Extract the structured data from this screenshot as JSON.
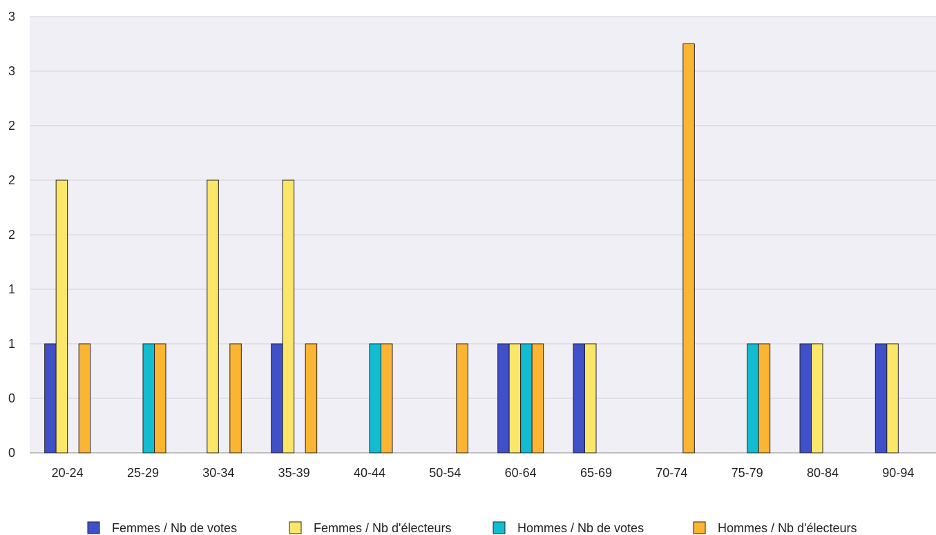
{
  "chart_data": {
    "type": "bar",
    "title": "",
    "xlabel": "",
    "ylabel": "",
    "categories": [
      "20-24",
      "25-29",
      "30-34",
      "35-39",
      "40-44",
      "50-54",
      "60-64",
      "65-69",
      "70-74",
      "75-79",
      "80-84",
      "90-94"
    ],
    "ylim": [
      0,
      4
    ],
    "y_tick_values": [
      0,
      0.5,
      1,
      1.5,
      2,
      2.5,
      3,
      3.5,
      4
    ],
    "y_tick_labels": [
      "0",
      "0",
      "1",
      "1",
      "2",
      "2",
      "2",
      "3",
      "3"
    ],
    "grid": true,
    "legend_position": "bottom",
    "series": [
      {
        "name": "Femmes / Nb de votes",
        "color": "#4050c8",
        "values": [
          1,
          0,
          0,
          1,
          0,
          0,
          1,
          1,
          0,
          0,
          1,
          1
        ]
      },
      {
        "name": "Femmes / Nb d'électeurs",
        "color": "#fce66a",
        "values": [
          2.5,
          0,
          2.5,
          2.5,
          0,
          0,
          1,
          1,
          0,
          0,
          1,
          1
        ]
      },
      {
        "name": "Hommes / Nb de votes",
        "color": "#12bdd2",
        "values": [
          0,
          1,
          0,
          0,
          1,
          0,
          1,
          0,
          0,
          1,
          0,
          0
        ]
      },
      {
        "name": "Hommes / Nb d'électeurs",
        "color": "#fbb532",
        "values": [
          1,
          1,
          1,
          1,
          1,
          1,
          1,
          0,
          3.75,
          1,
          0,
          0
        ]
      }
    ]
  }
}
